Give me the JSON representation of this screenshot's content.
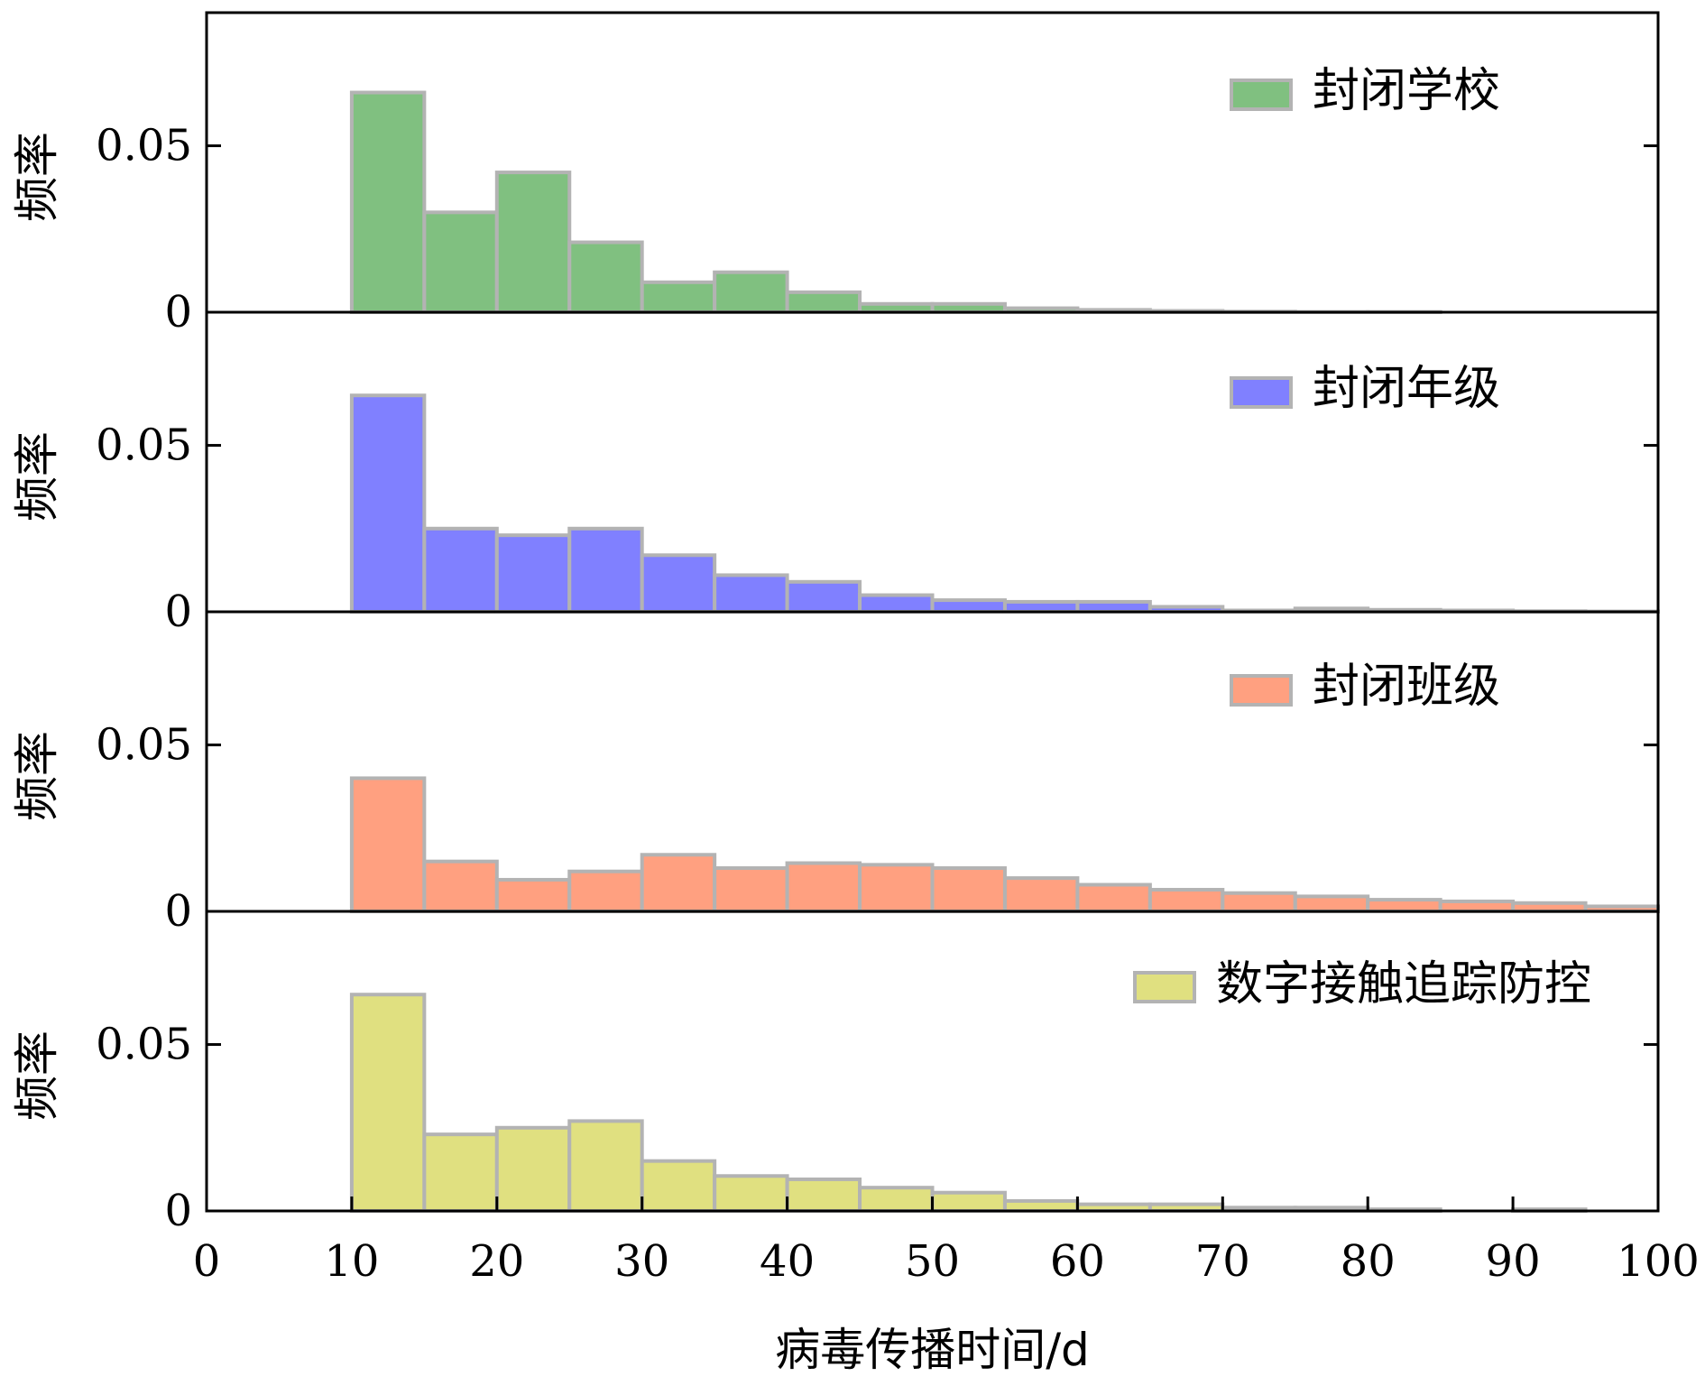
{
  "chart_data": {
    "type": "bar",
    "subtype": "stacked-panels-histogram",
    "xlabel": "病毒传播时间/d",
    "xlim": [
      0,
      100
    ],
    "xticks": [
      "0",
      "10",
      "20",
      "30",
      "40",
      "50",
      "60",
      "70",
      "80",
      "90",
      "100"
    ],
    "bin_width": 5,
    "bin_starts": [
      10,
      15,
      20,
      25,
      30,
      35,
      40,
      45,
      50,
      55,
      60,
      65,
      70,
      75,
      80,
      85,
      90,
      95
    ],
    "ylim": [
      0,
      0.09
    ],
    "yticks": [
      "0",
      "0.05"
    ],
    "legend_position": "top-right",
    "bar_edge_color": "#b3b3b3",
    "panels": [
      {
        "ylabel": "频率",
        "legend": "封闭学校",
        "color": "#80c080",
        "values": [
          0.066,
          0.03,
          0.042,
          0.021,
          0.009,
          0.012,
          0.006,
          0.0025,
          0.0025,
          0.0012,
          0.0007,
          0.0004,
          0.0002,
          0.0001,
          0.0001,
          0.0,
          0.0,
          0.0
        ]
      },
      {
        "ylabel": "频率",
        "legend": "封闭年级",
        "color": "#8080ff",
        "values": [
          0.065,
          0.025,
          0.023,
          0.025,
          0.017,
          0.011,
          0.009,
          0.005,
          0.0035,
          0.003,
          0.003,
          0.0015,
          0.0004,
          0.001,
          0.0006,
          0.0004,
          0.0002,
          0.0001
        ]
      },
      {
        "ylabel": "频率",
        "legend": "封闭班级",
        "color": "#ffa080",
        "values": [
          0.04,
          0.015,
          0.0095,
          0.012,
          0.017,
          0.013,
          0.0145,
          0.014,
          0.013,
          0.01,
          0.008,
          0.0065,
          0.0055,
          0.0045,
          0.0035,
          0.003,
          0.0025,
          0.0015
        ]
      },
      {
        "ylabel": "频率",
        "legend": "数字接触追踪防控",
        "color": "#e0e080",
        "values": [
          0.065,
          0.023,
          0.025,
          0.027,
          0.015,
          0.0105,
          0.0095,
          0.007,
          0.0055,
          0.003,
          0.002,
          0.002,
          0.001,
          0.001,
          0.0005,
          0.0,
          0.0005,
          0.0
        ]
      }
    ]
  }
}
